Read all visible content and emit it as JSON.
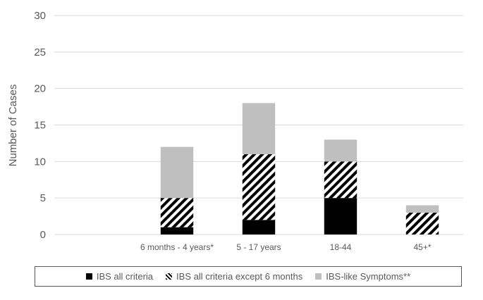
{
  "chart_data": {
    "type": "bar",
    "stacked": true,
    "categories": [
      "",
      "6 months - 4 years*",
      "5 - 17 years",
      "18-44",
      "45+*"
    ],
    "series": [
      {
        "name": "IBS all criteria",
        "values": [
          0,
          1,
          2,
          5,
          0
        ],
        "color": "#000000",
        "pattern": "solid"
      },
      {
        "name": "IBS all criteria except 6 months",
        "values": [
          0,
          4,
          9,
          5,
          3
        ],
        "color": "#000000",
        "pattern": "diagonal-stripes"
      },
      {
        "name": "IBS-like Symptoms**",
        "values": [
          0,
          7,
          7,
          3,
          1
        ],
        "color": "#bfbfbf",
        "pattern": "solid"
      }
    ],
    "title": "",
    "xlabel": "",
    "ylabel": "Number of Cases",
    "ylim": [
      0,
      30
    ],
    "yticks": [
      0,
      5,
      10,
      15,
      20,
      25,
      30
    ],
    "grid": true,
    "legend_position": "bottom"
  }
}
